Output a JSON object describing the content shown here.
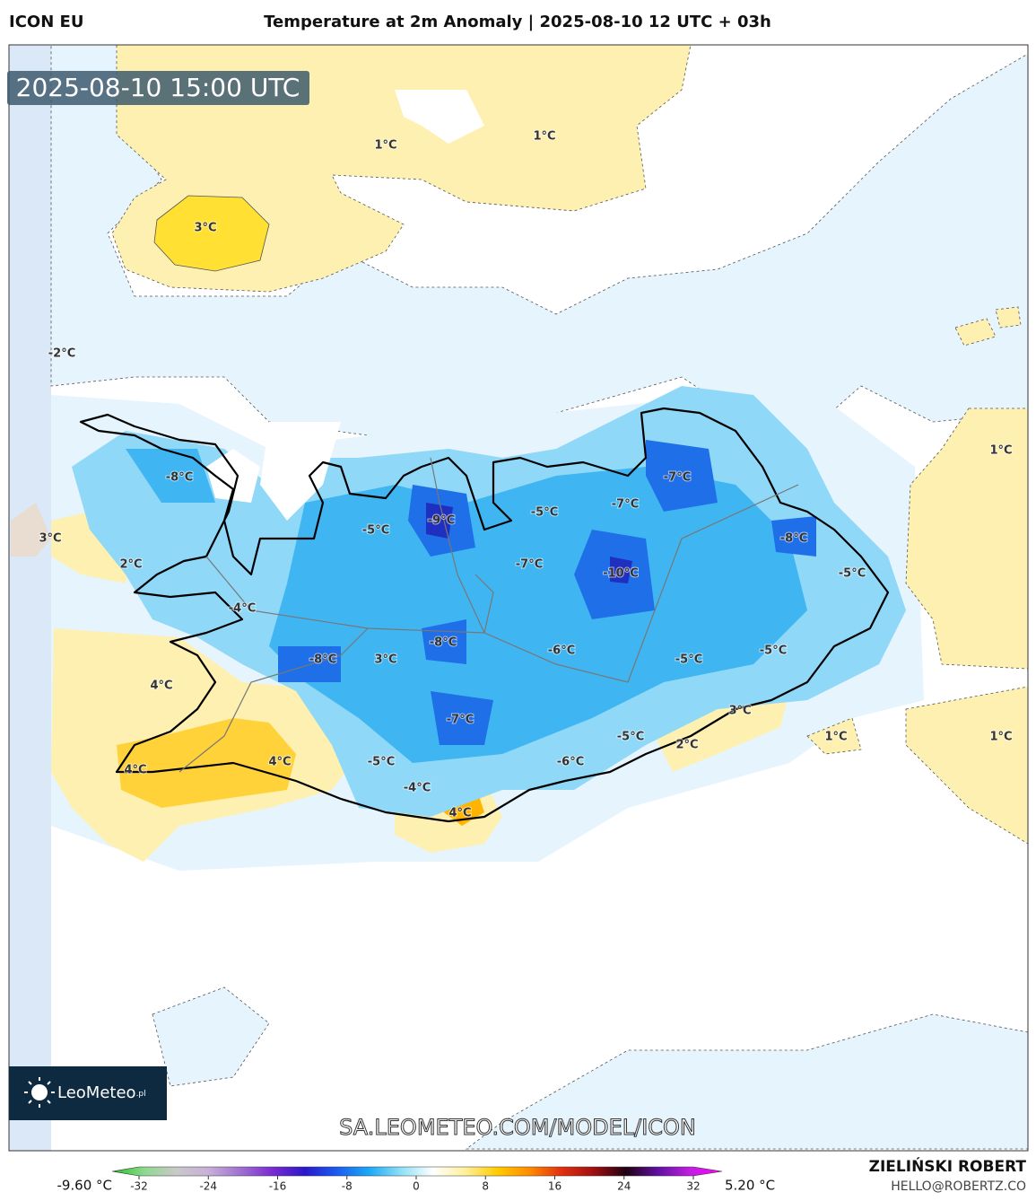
{
  "header": {
    "model": "ICON EU",
    "title": "Temperature at 2m Anomaly | 2025-08-10 12 UTC + 03h",
    "valid_time": "2025-08-10 15:00 UTC"
  },
  "contour_labels": [
    "1°C",
    "1°C",
    "3°C",
    "-2°C",
    "1°C",
    "-8°C",
    "-7°C",
    "-9°C",
    "-5°C",
    "-7°C",
    "3°C",
    "-5°C",
    "-8°C",
    "2°C",
    "-7°C",
    "-10°C",
    "-5°C",
    "-4°C",
    "-8°C",
    "-6°C",
    "-5°C",
    "-8°C",
    "3°C",
    "-5°C",
    "4°C",
    "3°C",
    "-7°C",
    "-5°C",
    "1°C",
    "1°C",
    "2°C",
    "4°C",
    "-5°C",
    "-6°C",
    "4°C",
    "-4°C",
    "4°C"
  ],
  "logo": {
    "name": "LeoMeteo",
    "suffix": ".pl"
  },
  "watermark": "SA.LEOMETEO.COM/MODEL/ICON",
  "colorbar": {
    "min_label": "-9.60 °C",
    "max_label": "5.20 °C",
    "range": [
      -32,
      32
    ],
    "ticks": [
      -32,
      -24,
      -16,
      -8,
      0,
      8,
      16,
      24,
      32
    ],
    "colors": [
      "#22c322",
      "#8fd88f",
      "#c9c9c9",
      "#c8b0d8",
      "#a070d0",
      "#7a2ad0",
      "#2a18c8",
      "#1a5cf0",
      "#1ca8f5",
      "#8fe0f8",
      "#ffffff",
      "#fff09a",
      "#ffcc00",
      "#ff8c00",
      "#e03010",
      "#a01010",
      "#200010",
      "#6010a0",
      "#c020e0",
      "#ff00ff"
    ]
  },
  "author": {
    "name": "ZIELIŃSKI ROBERT",
    "email": "HELLO@ROBERTZ.CO"
  }
}
